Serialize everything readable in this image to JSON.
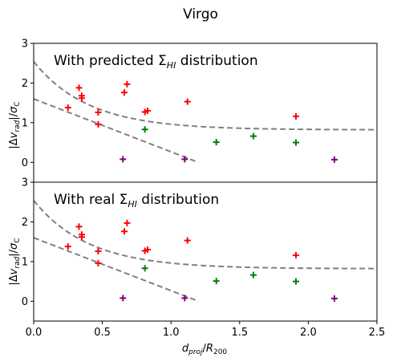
{
  "figure": {
    "title": "Virgo"
  },
  "chart_data": [
    {
      "type": "scatter",
      "panel": "top",
      "annotation": "With predicted ΣHI distribution",
      "annotation_main": "With predicted Σ",
      "annotation_sub": "HI",
      "annotation_tail": " distribution",
      "ylabel": "|Δv_rad|/σ_C",
      "xlim": [
        0.0,
        2.5
      ],
      "ylim": [
        -0.5,
        3.0
      ],
      "yticks": [
        "0",
        "1",
        "2",
        "3"
      ],
      "xticks": [],
      "series": [
        {
          "color": "#ff0000",
          "points": [
            [
              0.25,
              1.38
            ],
            [
              0.33,
              1.88
            ],
            [
              0.35,
              1.68
            ],
            [
              0.35,
              1.62
            ],
            [
              0.47,
              1.26
            ],
            [
              0.47,
              0.96
            ],
            [
              0.66,
              1.76
            ],
            [
              0.68,
              1.97
            ],
            [
              0.81,
              1.27
            ],
            [
              0.83,
              1.3
            ],
            [
              1.12,
              1.53
            ],
            [
              1.91,
              1.16
            ]
          ]
        },
        {
          "color": "#008000",
          "points": [
            [
              0.81,
              0.83
            ],
            [
              1.33,
              0.51
            ],
            [
              1.6,
              0.66
            ],
            [
              1.91,
              0.5
            ]
          ]
        },
        {
          "color": "#800080",
          "points": [
            [
              0.65,
              0.08
            ],
            [
              1.1,
              0.08
            ],
            [
              2.19,
              0.07
            ]
          ]
        }
      ],
      "curves": [
        {
          "style": "dashed",
          "color": "#808080",
          "kind": "decay",
          "a": 1.72,
          "b": 2.5,
          "c": 0.82
        },
        {
          "style": "dashed",
          "color": "#808080",
          "kind": "line",
          "x0": 0.0,
          "y0": 1.6,
          "x1": 1.2,
          "y1": 0.0
        }
      ]
    },
    {
      "type": "scatter",
      "panel": "bottom",
      "annotation": "With real ΣHI distribution",
      "annotation_main": "With real Σ",
      "annotation_sub": "HI",
      "annotation_tail": " distribution",
      "ylabel": "|Δv_rad|/σ_C",
      "xlabel": "d_proj/R_200",
      "xlim": [
        0.0,
        2.5
      ],
      "ylim": [
        -0.5,
        3.0
      ],
      "yticks": [
        "0",
        "1",
        "2",
        "3"
      ],
      "xticks": [
        "0.0",
        "0.5",
        "1.0",
        "1.5",
        "2.0",
        "2.5"
      ],
      "series": [
        {
          "color": "#ff0000",
          "points": [
            [
              0.25,
              1.38
            ],
            [
              0.33,
              1.88
            ],
            [
              0.35,
              1.68
            ],
            [
              0.35,
              1.62
            ],
            [
              0.47,
              1.26
            ],
            [
              0.47,
              0.96
            ],
            [
              0.66,
              1.76
            ],
            [
              0.68,
              1.97
            ],
            [
              0.81,
              1.27
            ],
            [
              0.83,
              1.3
            ],
            [
              1.12,
              1.53
            ],
            [
              1.91,
              1.16
            ]
          ]
        },
        {
          "color": "#008000",
          "points": [
            [
              0.81,
              0.83
            ],
            [
              1.33,
              0.51
            ],
            [
              1.6,
              0.66
            ],
            [
              1.91,
              0.5
            ]
          ]
        },
        {
          "color": "#800080",
          "points": [
            [
              0.65,
              0.08
            ],
            [
              1.1,
              0.08
            ],
            [
              2.19,
              0.07
            ]
          ]
        }
      ],
      "curves": [
        {
          "style": "dashed",
          "color": "#808080",
          "kind": "decay",
          "a": 1.72,
          "b": 2.5,
          "c": 0.82
        },
        {
          "style": "dashed",
          "color": "#808080",
          "kind": "line",
          "x0": 0.0,
          "y0": 1.6,
          "x1": 1.2,
          "y1": 0.0
        }
      ]
    }
  ]
}
